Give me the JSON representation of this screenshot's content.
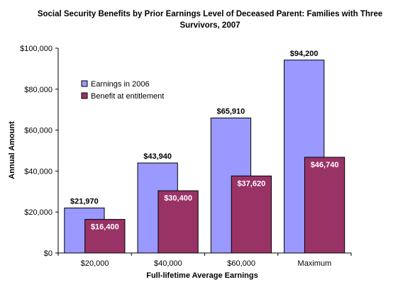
{
  "chart_data": {
    "type": "bar",
    "title": "Social Security Benefits by Prior Earnings Level of Deceased Parent: Families with Three Survivors, 2007",
    "xlabel": "Full-lifetime Average Earnings",
    "ylabel": "Annual Amount",
    "categories": [
      "$20,000",
      "$40,000",
      "$60,000",
      "Maximum"
    ],
    "series": [
      {
        "name": "Earnings in 2006",
        "color": "#9999ff",
        "values": [
          21970,
          43940,
          65910,
          94200
        ],
        "labels": [
          "$21,970",
          "$43,940",
          "$65,910",
          "$94,200"
        ]
      },
      {
        "name": "Benefit at entitlement",
        "color": "#993366",
        "values": [
          16400,
          30400,
          37620,
          46740
        ],
        "labels": [
          "$16,400",
          "$30,400",
          "$37,620",
          "$46,740"
        ]
      }
    ],
    "ylim": [
      0,
      100000
    ],
    "yticks": [
      0,
      20000,
      40000,
      60000,
      80000,
      100000
    ],
    "ytick_labels": [
      "$0",
      "$20,000",
      "$40,000",
      "$60,000",
      "$80,000",
      "$100,000"
    ],
    "grid": false,
    "legend_position": "top-left"
  }
}
